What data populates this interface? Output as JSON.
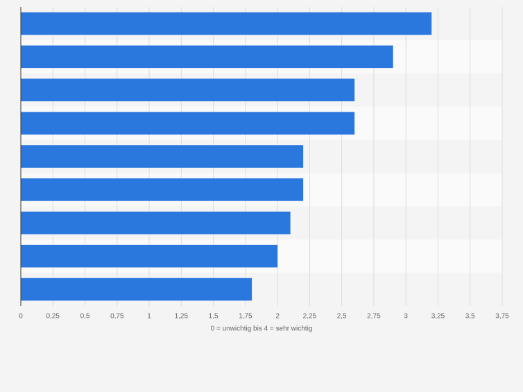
{
  "chart_data": {
    "type": "bar",
    "orientation": "horizontal",
    "x_label": "0 = unwichtig bis 4 = sehr wichtig",
    "categories": [
      null,
      null,
      null,
      null,
      null,
      null,
      null,
      null,
      null
    ],
    "values": [
      3.2,
      2.9,
      2.6,
      2.6,
      2.2,
      2.2,
      2.1,
      2.0,
      1.8
    ],
    "color": "#2a78de",
    "xlim": [
      0,
      3.75
    ],
    "xticks": [
      0,
      {
        "value": 0.25,
        "label": "0,25"
      },
      {
        "value": 0.5,
        "label": "0,5"
      },
      {
        "value": 0.75,
        "label": "0,75"
      },
      1,
      {
        "value": 1.25,
        "label": "1,25"
      },
      {
        "value": 1.5,
        "label": "1,5"
      },
      {
        "value": 1.75,
        "label": "1,75"
      },
      2,
      {
        "value": 2.25,
        "label": "2,25"
      },
      {
        "value": 2.5,
        "label": "2,5"
      },
      {
        "value": 2.75,
        "label": "2,75"
      },
      3,
      {
        "value": 3.25,
        "label": "3,25"
      },
      {
        "value": 3.5,
        "label": "3,5"
      },
      {
        "value": 3.75,
        "label": "3,75"
      }
    ],
    "grid": true
  }
}
